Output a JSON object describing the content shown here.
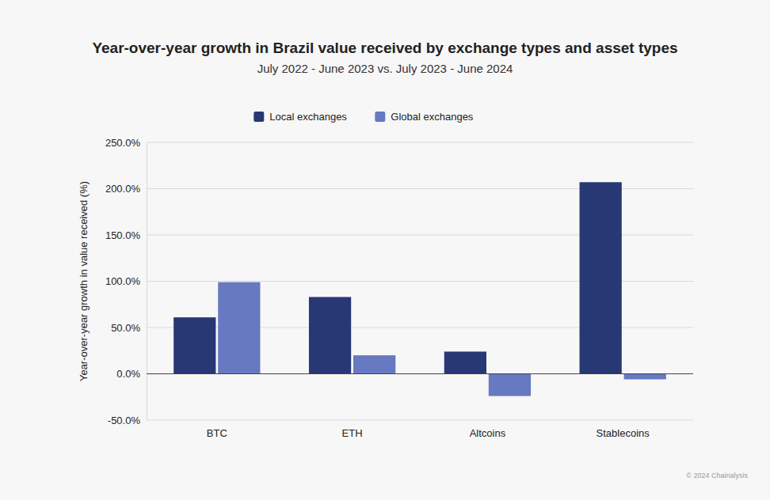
{
  "chart_data": {
    "type": "bar",
    "title": "Year-over-year growth in Brazil value received by exchange types and asset types",
    "subtitle": "July 2022 - June 2023 vs. July 2023 - June 2024",
    "y_label": "Year-over-year growth in value received (%)",
    "credit": "© 2024 Chainalysis",
    "categories": [
      "BTC",
      "ETH",
      "Altcoins",
      "Stablecoins"
    ],
    "series": [
      {
        "name": "Local exchanges",
        "color": "#283874",
        "values": [
          61,
          83,
          24,
          207
        ]
      },
      {
        "name": "Global exchanges",
        "color": "#6779c0",
        "values": [
          99,
          20,
          -24,
          -6
        ]
      }
    ],
    "ylim": [
      -50,
      250
    ],
    "yticks": [
      {
        "value": -50,
        "label": "-50.0%"
      },
      {
        "value": 0,
        "label": "0.0%"
      },
      {
        "value": 50,
        "label": "50.0%"
      },
      {
        "value": 100,
        "label": "100.0%"
      },
      {
        "value": 150,
        "label": "150.0%"
      },
      {
        "value": 200,
        "label": "200.0%"
      },
      {
        "value": 250,
        "label": "250.0%"
      }
    ],
    "grid": true,
    "legend": "top"
  }
}
